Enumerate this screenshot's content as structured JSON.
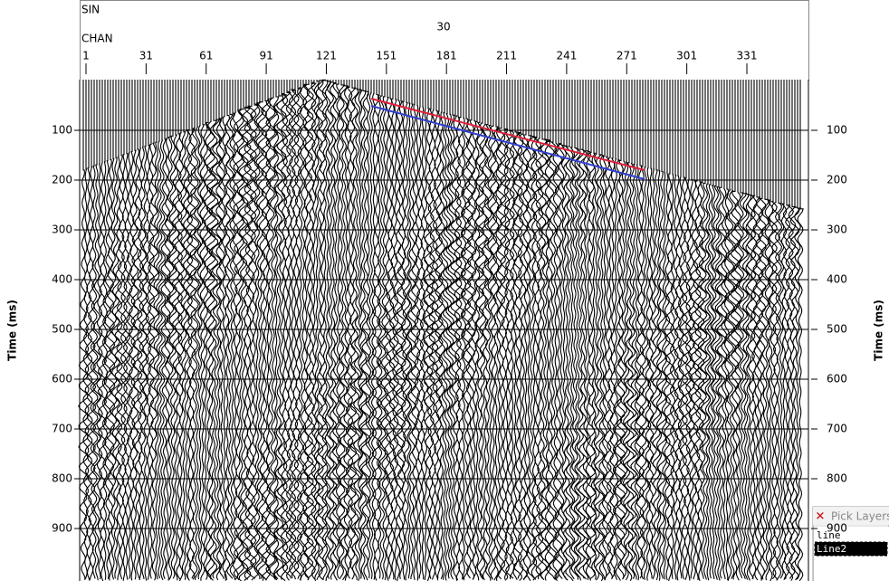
{
  "header": {
    "sin_label": "SIN",
    "sin_value": "30",
    "chan_label": "CHAN"
  },
  "channel_ticks": [
    1,
    31,
    61,
    91,
    121,
    151,
    181,
    211,
    241,
    271,
    301,
    331
  ],
  "time_ticks": [
    100,
    200,
    300,
    400,
    500,
    600,
    700,
    800,
    900
  ],
  "y_axis_label": "Time (ms)",
  "pick_layers": {
    "title": "Pick Layers",
    "items": [
      "line",
      "Line2"
    ],
    "selected": 1
  }
}
